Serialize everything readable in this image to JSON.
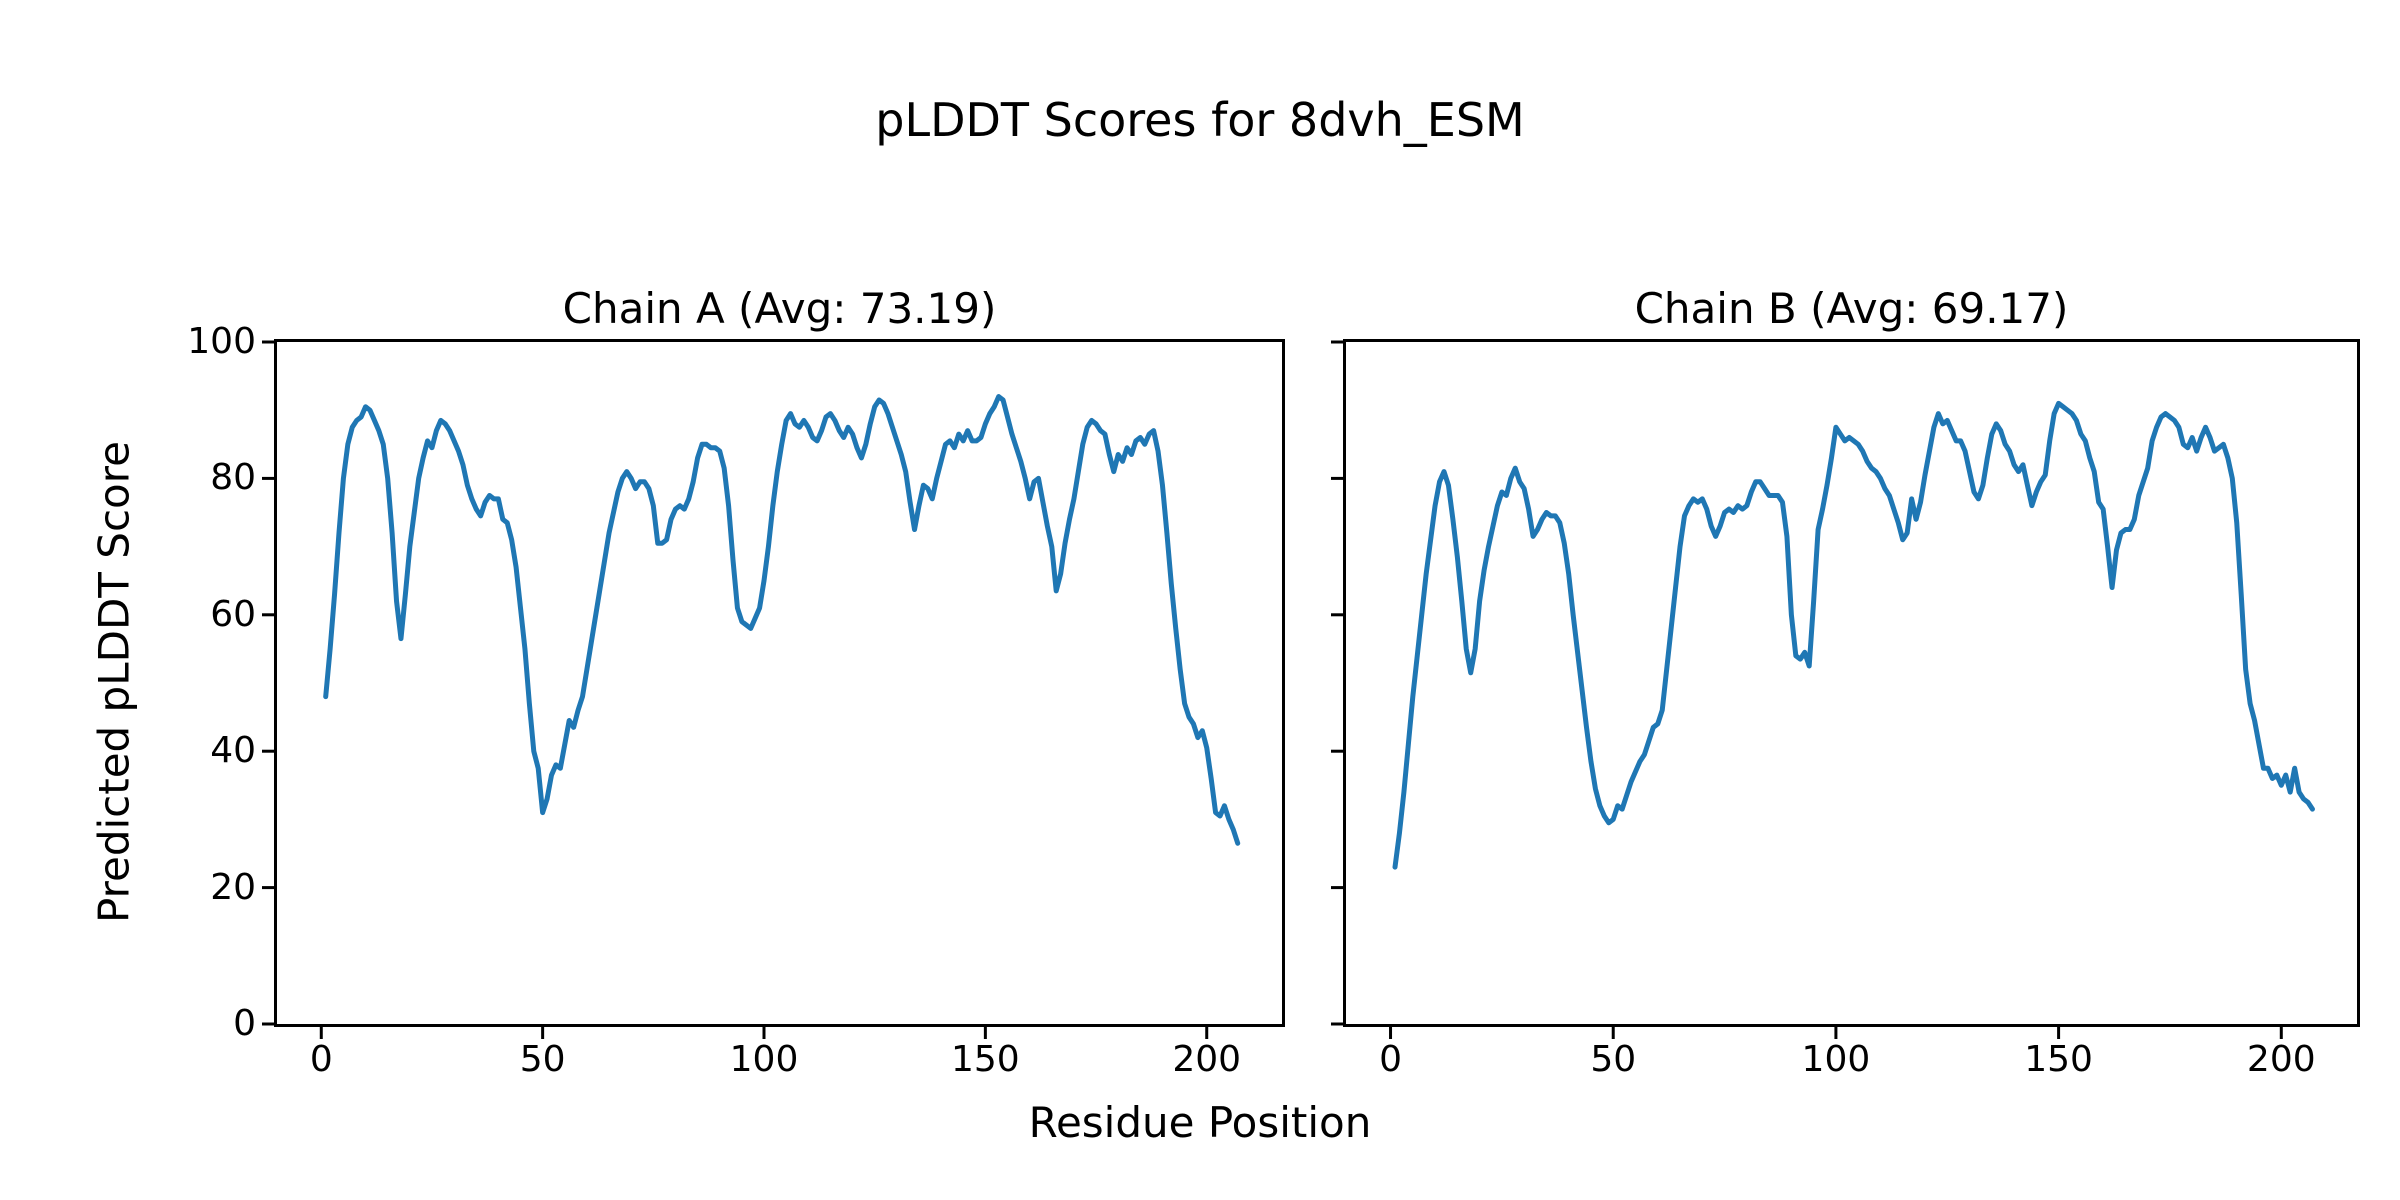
{
  "figure": {
    "title": "pLDDT Scores for 8dvh_ESM",
    "xlabel": "Residue Position",
    "ylabel": "Predicted pLDDT Score",
    "background_color": "#ffffff",
    "text_color": "#000000"
  },
  "chart_data": {
    "type": "line",
    "line_color": "#1f77b4",
    "grid": false,
    "legend": "none",
    "xlim": [
      -10,
      217
    ],
    "ylim": [
      0,
      100
    ],
    "x_ticks": [
      0,
      50,
      100,
      150,
      200
    ],
    "y_ticks": [
      0,
      20,
      40,
      60,
      80,
      100
    ],
    "x_step": 1,
    "xlabel": "Residue Position",
    "ylabel": "Predicted pLDDT Score",
    "charts": [
      {
        "title": "Chain A (Avg: 73.19)",
        "chain": "A",
        "avg": 73.19,
        "x_start": 1,
        "values": [
          48,
          55,
          63,
          72,
          80,
          85,
          87.5,
          88.5,
          89,
          90.5,
          90,
          88.5,
          87,
          85,
          80,
          72,
          62,
          56.5,
          63,
          70,
          75,
          80,
          83,
          85.5,
          84.5,
          87,
          88.5,
          88,
          87,
          85.5,
          84,
          82,
          79,
          77,
          75.5,
          74.5,
          76.5,
          77.5,
          77,
          77,
          74,
          73.5,
          71,
          67,
          61,
          55,
          47,
          40,
          37.5,
          31,
          33,
          36.5,
          38,
          37.5,
          41,
          44.5,
          43.5,
          46,
          48,
          52,
          56,
          60,
          64,
          68,
          72,
          75,
          78,
          80,
          81,
          80,
          78.5,
          79.5,
          79.5,
          78.5,
          76,
          70.5,
          70.5,
          71,
          74,
          75.5,
          76,
          75.5,
          77,
          79.5,
          83,
          85,
          85,
          84.5,
          84.5,
          84,
          81.5,
          76,
          68,
          61,
          59,
          58.5,
          58,
          59.5,
          61,
          65,
          70,
          76,
          81,
          85,
          88.5,
          89.5,
          88,
          87.5,
          88.5,
          87.5,
          86,
          85.5,
          87,
          89,
          89.5,
          88.5,
          87,
          86,
          87.5,
          86.5,
          84.5,
          83,
          85,
          88,
          90.5,
          91.5,
          91,
          89.5,
          87.5,
          85.5,
          83.5,
          81,
          76.5,
          72.5,
          76,
          79,
          78.5,
          77,
          80,
          82.5,
          85,
          85.5,
          84.5,
          86.5,
          85.5,
          87,
          85.5,
          85.5,
          86,
          88,
          89.5,
          90.5,
          92,
          91.5,
          89,
          86.5,
          84.5,
          82.5,
          80,
          77,
          79.5,
          80,
          76.5,
          73,
          70,
          63.5,
          66,
          70.5,
          74,
          77,
          81,
          85,
          87.5,
          88.5,
          88,
          87,
          86.5,
          83.5,
          81,
          83.5,
          82.5,
          84.5,
          83.5,
          85.5,
          86,
          85,
          86.5,
          87,
          84,
          79,
          72,
          64.5,
          58,
          52,
          47,
          45,
          44,
          42,
          43,
          40.5,
          36,
          31,
          30.5,
          32,
          30,
          28.5,
          26.5
        ]
      },
      {
        "title": "Chain B (Avg: 69.17)",
        "chain": "B",
        "avg": 69.17,
        "x_start": 1,
        "values": [
          23,
          28,
          34,
          41,
          48,
          54,
          60,
          66,
          71,
          76,
          79.5,
          81,
          79,
          74,
          68.5,
          62,
          55,
          51.5,
          55,
          62,
          66.5,
          70,
          73,
          76,
          78,
          77.5,
          80,
          81.5,
          79.5,
          78.5,
          75.5,
          71.5,
          72.5,
          74,
          75,
          74.5,
          74.5,
          73.5,
          70.5,
          66,
          60,
          54.5,
          49,
          43.5,
          38.5,
          34.5,
          32,
          30.5,
          29.5,
          30,
          32,
          31.5,
          33.5,
          35.5,
          37,
          38.5,
          39.5,
          41.5,
          43.5,
          44,
          46,
          52,
          58,
          64,
          70,
          74.5,
          76,
          77,
          76.5,
          77,
          75.5,
          73,
          71.5,
          73,
          75,
          75.5,
          75,
          76,
          75.5,
          76,
          78,
          79.5,
          79.5,
          78.5,
          77.5,
          77.5,
          77.5,
          76.5,
          71.5,
          60,
          54,
          53.5,
          54.5,
          52.5,
          62,
          72.5,
          75.5,
          79,
          83,
          87.5,
          86.5,
          85.5,
          86,
          85.5,
          85,
          84,
          82.5,
          81.5,
          81,
          80,
          78.5,
          77.5,
          75.5,
          73.5,
          71,
          72,
          77,
          74,
          76.5,
          80.5,
          84,
          87.5,
          89.5,
          88,
          88.5,
          87,
          85.5,
          85.5,
          84,
          81,
          78,
          77,
          79,
          83,
          86.5,
          88,
          87,
          85,
          84,
          82,
          81,
          82,
          79,
          76,
          78,
          79.5,
          80.5,
          85.5,
          89.5,
          91,
          90.5,
          90,
          89.5,
          88.5,
          86.5,
          85.5,
          83,
          81,
          76.5,
          75.5,
          70,
          64,
          69.5,
          72,
          72.5,
          72.5,
          74,
          77.5,
          79.5,
          81.5,
          85.5,
          87.5,
          89,
          89.5,
          89,
          88.5,
          87.5,
          85,
          84.5,
          86,
          84,
          86,
          87.5,
          86,
          84,
          84.5,
          85,
          83,
          80,
          73.5,
          63,
          52,
          47,
          44.5,
          41,
          37.5,
          37.5,
          36,
          36.5,
          35,
          36.5,
          34,
          37.5,
          34,
          33,
          32.5,
          31.5
        ]
      }
    ]
  }
}
